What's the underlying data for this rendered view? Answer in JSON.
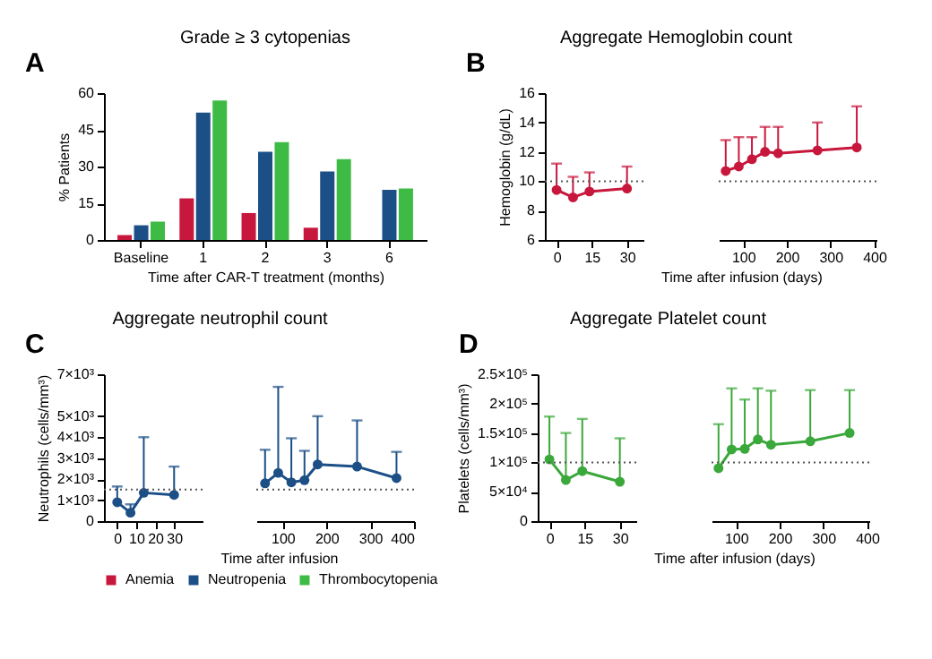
{
  "chart_data": [
    {
      "type": "bar",
      "title": "Grade ≥ 3 cytopenias",
      "annotations": [
        "A"
      ],
      "xlabel": "Time after CAR-T treatment (months)",
      "ylabel": "% Patients",
      "categories": [
        "Baseline",
        "1",
        "2",
        "3",
        "6"
      ],
      "legend": "bottom",
      "ylim": [
        0,
        60
      ],
      "yticks": [
        0,
        15,
        30,
        45,
        60
      ],
      "series": [
        {
          "name": "Anemia",
          "color": "#c8173c",
          "values": [
            2,
            17,
            11,
            5,
            null
          ]
        },
        {
          "name": "Neutropenia",
          "color": "#1c4f86",
          "values": [
            6,
            52,
            36,
            28,
            20.5
          ]
        },
        {
          "name": "Thrombocytopenia",
          "color": "#3dbb45",
          "values": [
            7.5,
            57,
            40,
            33,
            21
          ]
        }
      ]
    },
    {
      "type": "line",
      "title": "Aggregate Hemoglobin count",
      "annotations": [
        "B"
      ],
      "ylabel": "Hemoglobin (g/dL)",
      "marker": "circle",
      "xlim": [
        -5,
        37
      ],
      "xticks": [
        0,
        15,
        30
      ],
      "ylim": [
        6,
        16
      ],
      "yticks": [
        6,
        8,
        10,
        12,
        14,
        16
      ],
      "ref_lines": [
        {
          "axis": "y",
          "value": 10,
          "line_style": "dotted"
        }
      ],
      "series": [
        {
          "color": "#c8173c",
          "x": [
            0,
            7,
            14,
            30
          ],
          "values": [
            9.4,
            8.9,
            9.3,
            9.5
          ],
          "errors": [
            [
              9.4,
              11.2
            ],
            [
              8.9,
              10.3
            ],
            [
              9.3,
              10.6
            ],
            [
              9.5,
              11.0
            ]
          ]
        }
      ]
    },
    {
      "type": "line",
      "xlabel": "Time after infusion (days)",
      "tick_labels": "x",
      "marker": "circle",
      "xlim": [
        44,
        405
      ],
      "xticks": [
        100,
        200,
        300,
        400
      ],
      "ylim": [
        6,
        16
      ],
      "ref_lines": [
        {
          "axis": "y",
          "value": 10,
          "line_style": "dotted"
        }
      ],
      "series": [
        {
          "color": "#c8173c",
          "x": [
            60,
            90,
            120,
            150,
            180,
            270,
            360
          ],
          "values": [
            10.7,
            11.0,
            11.5,
            12.0,
            11.9,
            12.1,
            12.3
          ],
          "errors": [
            [
              10.7,
              12.8
            ],
            [
              11.0,
              13.0
            ],
            [
              11.5,
              13.0
            ],
            [
              12.0,
              13.7
            ],
            [
              11.9,
              13.7
            ],
            [
              12.1,
              14.0
            ],
            [
              12.3,
              15.1
            ]
          ]
        }
      ]
    },
    {
      "type": "line",
      "title": "Aggregate neutrophil count",
      "annotations": [
        "C"
      ],
      "ylabel": "Neutrophils (cells/mm³)",
      "marker": "circle",
      "xlim": [
        -7,
        45
      ],
      "xticks": [
        0,
        10,
        20,
        30
      ],
      "ylim": [
        0,
        7000
      ],
      "yticks": [
        0,
        {
          "value": 1000,
          "label": "1×10³"
        },
        {
          "value": 2000,
          "label": "2×10³"
        },
        {
          "value": 3000,
          "label": "3×10³"
        },
        {
          "value": 4000,
          "label": "4×10³"
        },
        {
          "value": 5000,
          "label": "5×10³"
        },
        {
          "value": 7000,
          "label": "7×10³"
        }
      ],
      "ref_lines": [
        {
          "axis": "y",
          "value": 1500,
          "line_style": "dotted"
        }
      ],
      "series": [
        {
          "color": "#1c4f86",
          "x": [
            0,
            7,
            14,
            30
          ],
          "values": [
            900,
            400,
            1350,
            1250
          ],
          "errors": [
            [
              900,
              1650
            ],
            [
              400,
              800
            ],
            [
              1350,
              4000
            ],
            [
              1250,
              2600
            ]
          ]
        }
      ]
    },
    {
      "type": "line",
      "xlabel": "Time after infusion",
      "tick_labels": "x",
      "marker": "circle",
      "xlim": [
        40,
        400
      ],
      "xticks": [
        100,
        200,
        300,
        400
      ],
      "ylim": [
        0,
        7000
      ],
      "ref_lines": [
        {
          "axis": "y",
          "value": 1500,
          "line_style": "dotted"
        }
      ],
      "series": [
        {
          "color": "#1c4f86",
          "x": [
            60,
            90,
            120,
            150,
            180,
            270,
            360
          ],
          "values": [
            1800,
            2300,
            1850,
            1950,
            2700,
            2600,
            2050
          ],
          "errors": [
            [
              1800,
              3400
            ],
            [
              2300,
              6400
            ],
            [
              1850,
              3950
            ],
            [
              1950,
              3350
            ],
            [
              2700,
              5000
            ],
            [
              2600,
              4800
            ],
            [
              2050,
              3300
            ]
          ]
        }
      ]
    },
    {
      "type": "line",
      "title": "Aggregate Platelet count",
      "annotations": [
        "D"
      ],
      "ylabel": "Platelets (cells/mm³)",
      "marker": "circle",
      "xlim": [
        -5,
        37
      ],
      "xticks": [
        0,
        15,
        30
      ],
      "ylim": [
        0,
        250000
      ],
      "yticks": [
        0,
        {
          "value": 50000,
          "label": "5×10⁴"
        },
        {
          "value": 100000,
          "label": "1×10⁵"
        },
        {
          "value": 150000,
          "label": "1.5×10⁵"
        },
        {
          "value": 200000,
          "label": "2×10⁵"
        },
        {
          "value": 250000,
          "label": "2.5×10⁵"
        }
      ],
      "ref_lines": [
        {
          "axis": "y",
          "value": 100000,
          "line_style": "dotted"
        }
      ],
      "series": [
        {
          "color": "#3aa83a",
          "x": [
            0,
            7,
            14,
            30
          ],
          "values": [
            105000,
            70000,
            85000,
            67000
          ],
          "errors": [
            [
              105000,
              178000
            ],
            [
              70000,
              150000
            ],
            [
              85000,
              174000
            ],
            [
              67000,
              141000
            ]
          ]
        }
      ]
    },
    {
      "type": "line",
      "xlabel": "Time after infusion (days)",
      "tick_labels": "x",
      "marker": "circle",
      "xlim": [
        44,
        405
      ],
      "xticks": [
        100,
        200,
        300,
        400
      ],
      "ylim": [
        0,
        250000
      ],
      "ref_lines": [
        {
          "axis": "y",
          "value": 100000,
          "line_style": "dotted"
        }
      ],
      "series": [
        {
          "color": "#3aa83a",
          "x": [
            60,
            90,
            120,
            150,
            180,
            270,
            360
          ],
          "values": [
            90000,
            122000,
            123000,
            139000,
            130000,
            136000,
            150000
          ],
          "errors": [
            [
              90000,
              165000
            ],
            [
              122000,
              226000
            ],
            [
              123000,
              207000
            ],
            [
              139000,
              226000
            ],
            [
              130000,
              222000
            ],
            [
              136000,
              223000
            ],
            [
              150000,
              223000
            ]
          ]
        }
      ]
    }
  ]
}
